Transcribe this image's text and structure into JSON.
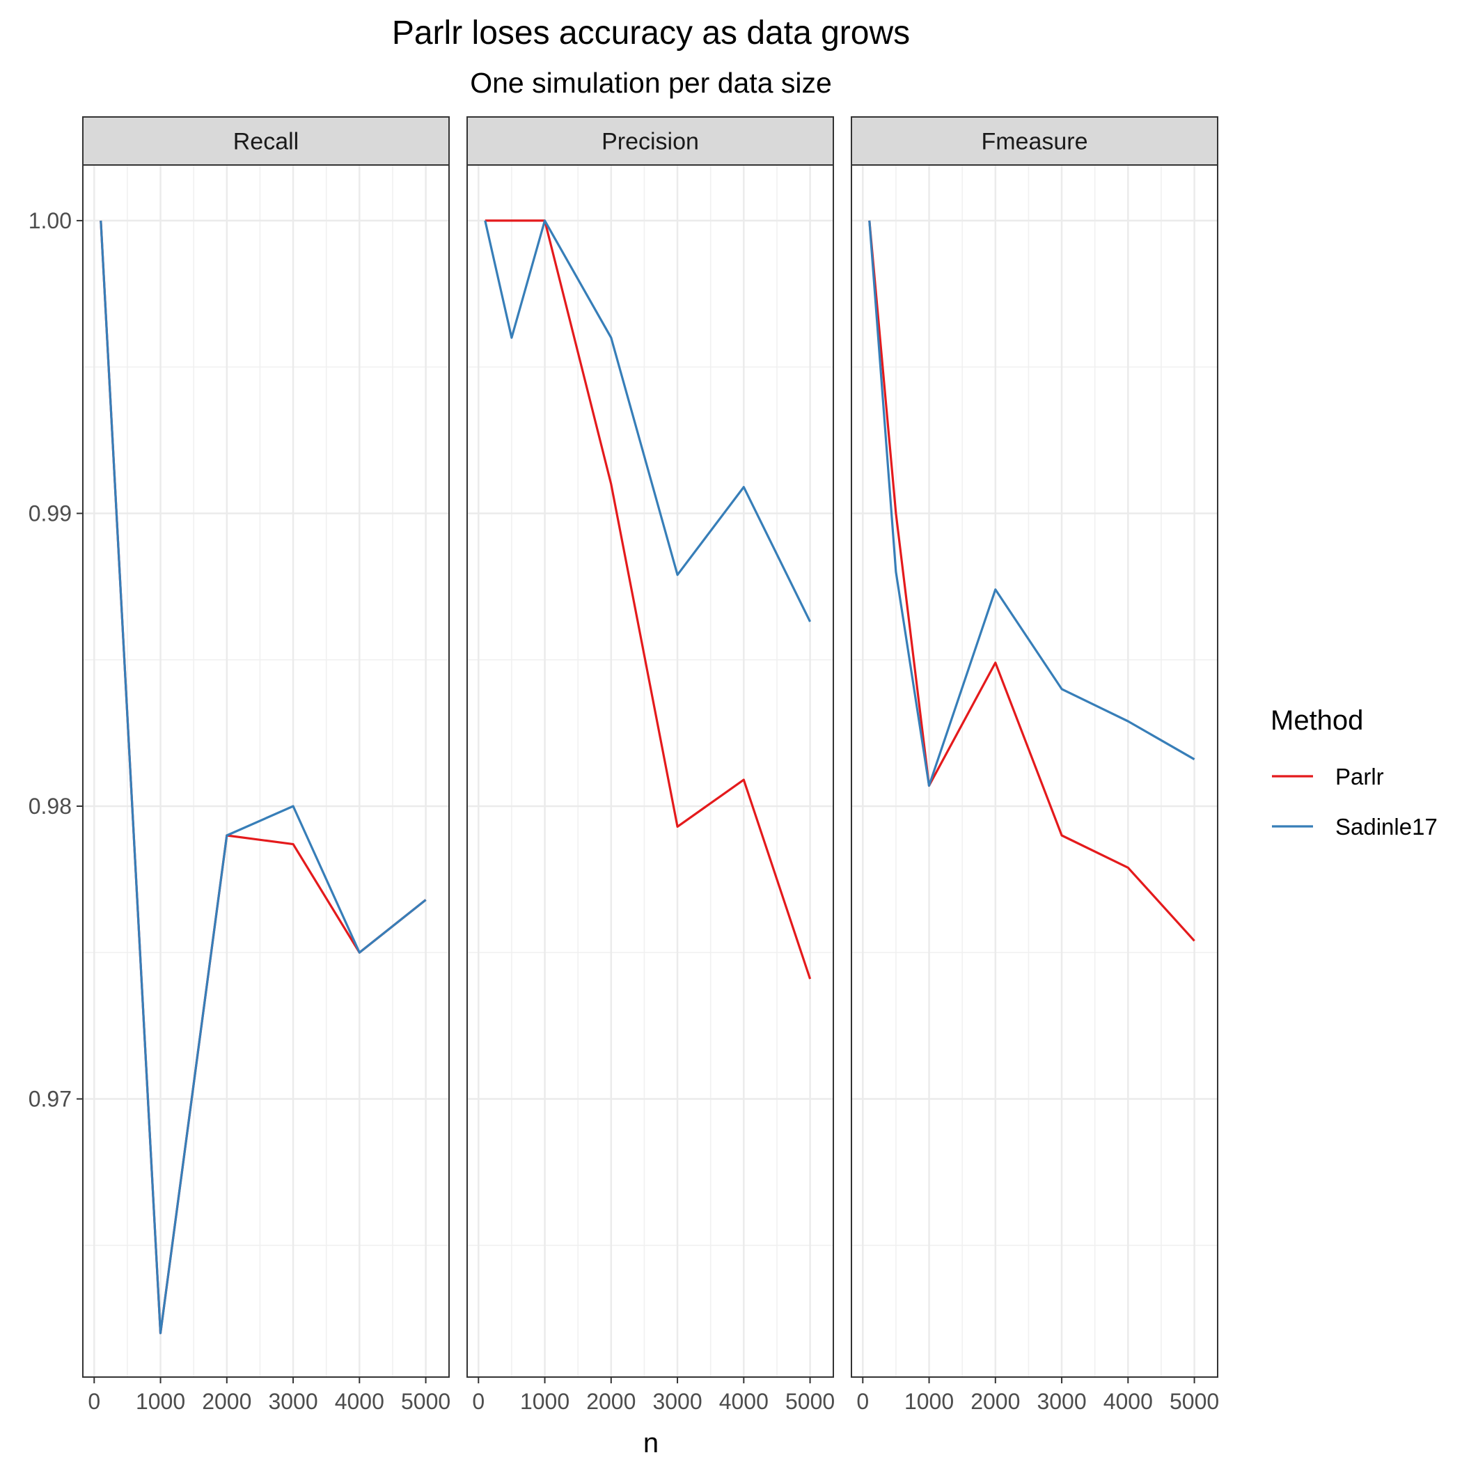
{
  "chart_data": {
    "type": "line",
    "title": "Parlr loses accuracy as data grows",
    "subtitle": "One simulation per data size",
    "xlabel": "n",
    "ylabel": "",
    "xlim": [
      0,
      5000
    ],
    "ylim": [
      0.9605,
      1.0019
    ],
    "x_ticks": [
      0,
      1000,
      2000,
      3000,
      4000,
      5000
    ],
    "x_tick_labels": [
      "0",
      "1000",
      "2000",
      "3000",
      "4000",
      "5000"
    ],
    "y_ticks": [
      0.97,
      0.98,
      0.99,
      1.0
    ],
    "y_tick_labels": [
      "0.97",
      "0.98",
      "0.99",
      "1.00"
    ],
    "grid": true,
    "legend": {
      "title": "Method",
      "position": "right"
    },
    "colors": {
      "Parlr": "#E41A1C",
      "Sadinle17": "#377EB8"
    },
    "panels": [
      {
        "name": "Recall",
        "series": [
          {
            "name": "Parlr",
            "x": [
              100,
              1000,
              2000,
              3000,
              4000,
              5000
            ],
            "y": [
              1.0,
              0.962,
              0.979,
              0.9787,
              0.975,
              0.9768
            ]
          },
          {
            "name": "Sadinle17",
            "x": [
              100,
              1000,
              2000,
              3000,
              4000,
              5000
            ],
            "y": [
              1.0,
              0.962,
              0.979,
              0.98,
              0.975,
              0.9768
            ]
          }
        ]
      },
      {
        "name": "Precision",
        "series": [
          {
            "name": "Parlr",
            "x": [
              100,
              500,
              1000,
              2000,
              3000,
              4000,
              5000
            ],
            "y": [
              1.0,
              1.0,
              1.0,
              0.991,
              0.9793,
              0.9809,
              0.9741
            ]
          },
          {
            "name": "Sadinle17",
            "x": [
              100,
              500,
              1000,
              2000,
              3000,
              4000,
              5000
            ],
            "y": [
              1.0,
              0.996,
              1.0,
              0.996,
              0.9879,
              0.9909,
              0.9863
            ]
          }
        ]
      },
      {
        "name": "Fmeasure",
        "series": [
          {
            "name": "Parlr",
            "x": [
              100,
              500,
              1000,
              2000,
              3000,
              4000,
              5000
            ],
            "y": [
              1.0,
              0.99,
              0.9807,
              0.9849,
              0.979,
              0.9779,
              0.9754
            ]
          },
          {
            "name": "Sadinle17",
            "x": [
              100,
              500,
              1000,
              2000,
              3000,
              4000,
              5000
            ],
            "y": [
              1.0,
              0.988,
              0.9807,
              0.9874,
              0.984,
              0.9829,
              0.9816
            ]
          }
        ]
      }
    ]
  }
}
